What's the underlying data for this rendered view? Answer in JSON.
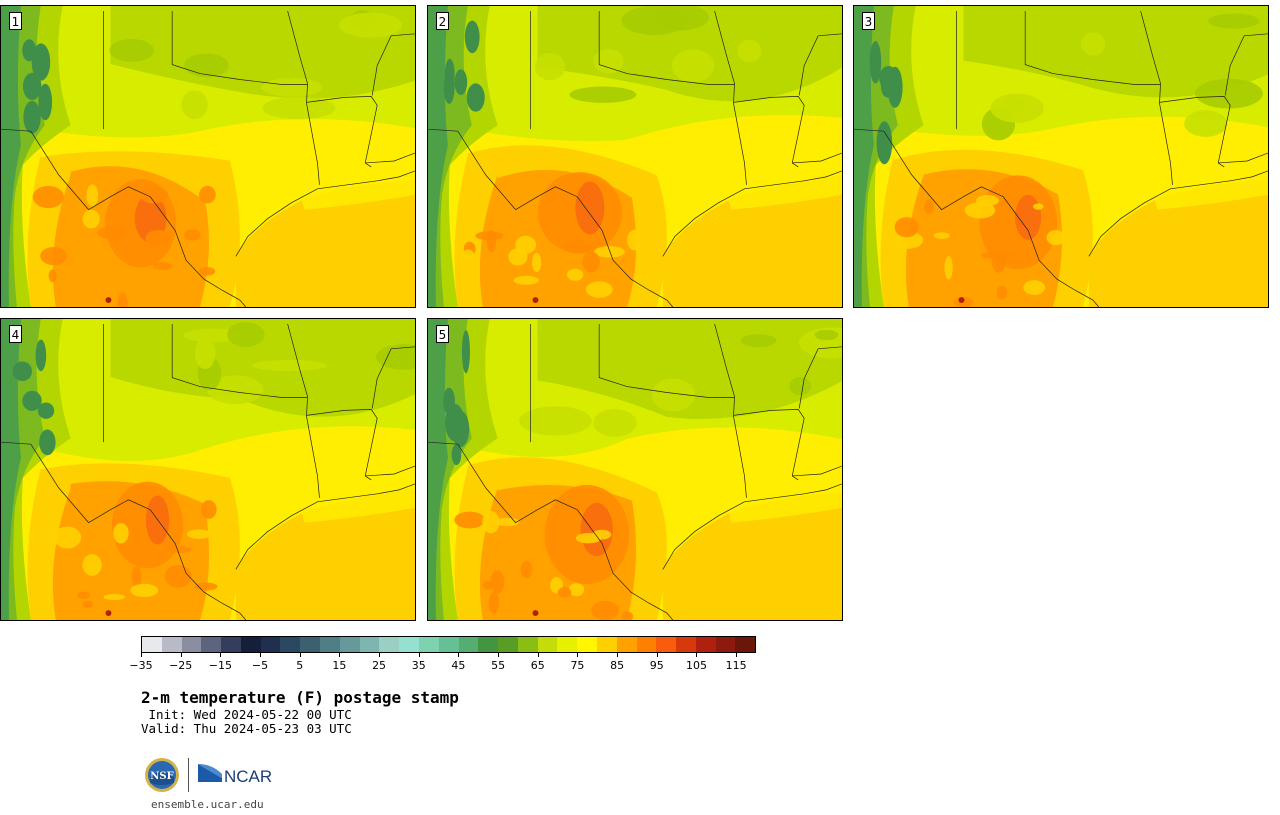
{
  "panels": [
    {
      "label": "1",
      "variant": 0
    },
    {
      "label": "2",
      "variant": 1
    },
    {
      "label": "3",
      "variant": 2
    },
    {
      "label": "4",
      "variant": 3
    },
    {
      "label": "5",
      "variant": 4
    }
  ],
  "colorbar": {
    "ticks": [
      "−35",
      "−25",
      "−15",
      "−5",
      "5",
      "15",
      "25",
      "35",
      "45",
      "55",
      "65",
      "75",
      "85",
      "95",
      "105",
      "115"
    ],
    "colors": [
      "#e8e9ec",
      "#b8bac6",
      "#8a8ea0",
      "#5e6480",
      "#343d5e",
      "#161f3a",
      "#1e2f4f",
      "#2a4862",
      "#3b6070",
      "#4f7e86",
      "#66999a",
      "#7db6b0",
      "#9ad0c3",
      "#95e0cf",
      "#7dd2b0",
      "#65c093",
      "#56ad71",
      "#43963f",
      "#589e24",
      "#8abe14",
      "#c4dc0a",
      "#e6f000",
      "#fff600",
      "#ffd000",
      "#ffa200",
      "#ff8000",
      "#f85c0c",
      "#d63a0c",
      "#b0200e",
      "#8c1a0e",
      "#6a1608"
    ]
  },
  "title": "2-m temperature (F) postage stamp",
  "init": " Init: Wed 2024-05-22 00 UTC",
  "valid": "Valid: Thu 2024-05-23 03 UTC",
  "logos": {
    "nsf": "NSF",
    "ncar": "NCAR"
  },
  "url": "ensemble.ucar.edu"
}
